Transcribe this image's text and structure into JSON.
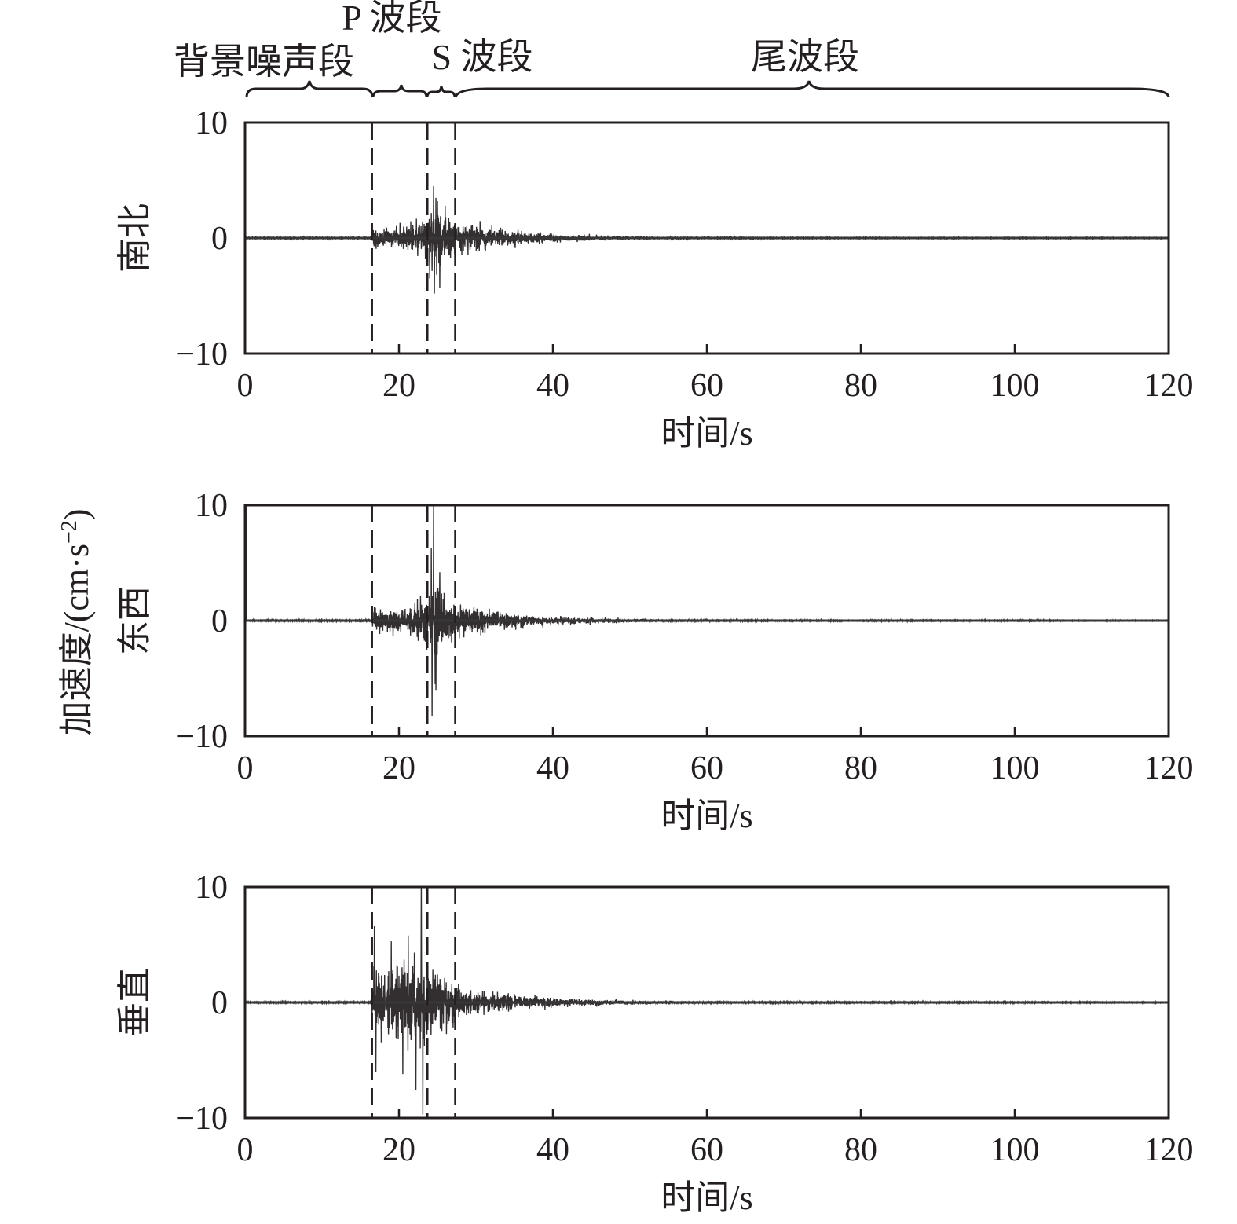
{
  "colors": {
    "ink": "#231f20",
    "trace": "#332f30",
    "background": "#ffffff"
  },
  "segments": {
    "background_noise": "背景噪声段",
    "p_wave": "P 波段",
    "s_wave": "S 波段",
    "coda": "尾波段"
  },
  "y_axis_main_label": "加速度/(cm·s",
  "y_axis_main_exponent": "−2",
  "y_axis_main_close": ")",
  "chart_data": [
    {
      "type": "line",
      "component": "南北",
      "xlabel": "时间/s",
      "ylabel": "南北",
      "xlim": [
        0,
        120
      ],
      "ylim": [
        -10,
        10
      ],
      "x_ticks": [
        0,
        20,
        40,
        60,
        80,
        100,
        120
      ],
      "x_tick_labels": [
        "0",
        "20",
        "40",
        "60",
        "80",
        "100",
        "120"
      ],
      "y_tick_labels": [
        "10",
        "0",
        "−10"
      ],
      "markers_s": [
        16.5,
        23.7,
        27.3
      ],
      "envelope": [
        [
          0,
          0.1
        ],
        [
          16.4,
          0.1
        ],
        [
          16.7,
          1.4
        ],
        [
          20,
          1.6
        ],
        [
          22,
          1.9
        ],
        [
          23.5,
          2.8
        ],
        [
          24.6,
          4.6
        ],
        [
          25.5,
          3.5
        ],
        [
          27,
          2.5
        ],
        [
          30,
          1.8
        ],
        [
          33,
          1.2
        ],
        [
          38,
          0.7
        ],
        [
          45,
          0.4
        ],
        [
          55,
          0.15
        ],
        [
          70,
          0.08
        ],
        [
          120,
          0.06
        ]
      ],
      "spikes": [
        [
          24.5,
          4.5
        ],
        [
          24.6,
          -4.8
        ],
        [
          25.0,
          3.2
        ],
        [
          25.3,
          -4.3
        ],
        [
          26.0,
          2.8
        ],
        [
          24.0,
          -3.5
        ]
      ],
      "legend": "none",
      "grid": false
    },
    {
      "type": "line",
      "component": "东西",
      "xlabel": "时间/s",
      "ylabel": "东西",
      "xlim": [
        0,
        120
      ],
      "ylim": [
        -10,
        10
      ],
      "x_ticks": [
        0,
        20,
        40,
        60,
        80,
        100,
        120
      ],
      "x_tick_labels": [
        "0",
        "20",
        "40",
        "60",
        "80",
        "100",
        "120"
      ],
      "y_tick_labels": [
        "10",
        "0",
        "−10"
      ],
      "markers_s": [
        16.5,
        23.7,
        27.3
      ],
      "envelope": [
        [
          0,
          0.1
        ],
        [
          16.4,
          0.1
        ],
        [
          16.7,
          1.5
        ],
        [
          20,
          1.7
        ],
        [
          22,
          2.0
        ],
        [
          23.5,
          3.0
        ],
        [
          24.5,
          5.0
        ],
        [
          25.5,
          3.8
        ],
        [
          27,
          2.6
        ],
        [
          30,
          1.8
        ],
        [
          33,
          1.2
        ],
        [
          38,
          0.7
        ],
        [
          45,
          0.4
        ],
        [
          55,
          0.15
        ],
        [
          70,
          0.08
        ],
        [
          120,
          0.06
        ]
      ],
      "spikes": [
        [
          24.2,
          6.3
        ],
        [
          24.3,
          -8.3
        ],
        [
          24.5,
          10
        ],
        [
          24.7,
          -5.5
        ],
        [
          25.3,
          4.2
        ],
        [
          24.8,
          -6.0
        ],
        [
          0.15,
          10
        ],
        [
          0.0,
          -10
        ]
      ],
      "legend": "none",
      "grid": false
    },
    {
      "type": "line",
      "component": "垂直",
      "xlabel": "时间/s",
      "ylabel": "垂直",
      "xlim": [
        0,
        120
      ],
      "ylim": [
        -10,
        10
      ],
      "x_ticks": [
        0,
        20,
        40,
        60,
        80,
        100,
        120
      ],
      "x_tick_labels": [
        "0",
        "20",
        "40",
        "60",
        "80",
        "100",
        "120"
      ],
      "y_tick_labels": [
        "10",
        "0",
        "−10"
      ],
      "markers_s": [
        16.5,
        23.7,
        27.3
      ],
      "envelope": [
        [
          0,
          0.1
        ],
        [
          16.3,
          0.1
        ],
        [
          16.6,
          5.5
        ],
        [
          18,
          4.5
        ],
        [
          20,
          5.5
        ],
        [
          22,
          5.5
        ],
        [
          23.2,
          6.0
        ],
        [
          24,
          5.0
        ],
        [
          26,
          3.5
        ],
        [
          28,
          2.0
        ],
        [
          31,
          1.3
        ],
        [
          36,
          0.9
        ],
        [
          42,
          0.5
        ],
        [
          50,
          0.3
        ],
        [
          60,
          0.12
        ],
        [
          120,
          0.06
        ]
      ],
      "spikes": [
        [
          16.8,
          6.6
        ],
        [
          17.0,
          -6.0
        ],
        [
          19.0,
          5.3
        ],
        [
          20.5,
          -6.2
        ],
        [
          22.2,
          -7.6
        ],
        [
          22.9,
          10
        ],
        [
          23.1,
          -9.7
        ],
        [
          21.2,
          5.8
        ]
      ],
      "legend": "none",
      "grid": false
    }
  ]
}
